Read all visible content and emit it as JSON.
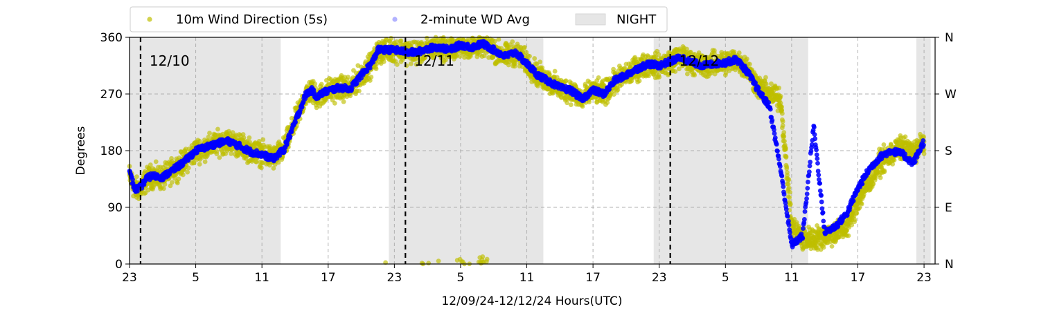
{
  "chart_data": {
    "type": "scatter",
    "xlabel": "12/09/24-12/12/24  Hours(UTC)",
    "ylabel": "Degrees",
    "x_unit": "hours",
    "xlim": [
      0,
      73
    ],
    "ylim": [
      0,
      360
    ],
    "x_ticks": [
      {
        "x": 0,
        "label": "23"
      },
      {
        "x": 6,
        "label": "5"
      },
      {
        "x": 12,
        "label": "11"
      },
      {
        "x": 18,
        "label": "17"
      },
      {
        "x": 24,
        "label": "23"
      },
      {
        "x": 30,
        "label": "5"
      },
      {
        "x": 36,
        "label": "11"
      },
      {
        "x": 42,
        "label": "17"
      },
      {
        "x": 48,
        "label": "23"
      },
      {
        "x": 54,
        "label": "5"
      },
      {
        "x": 60,
        "label": "11"
      },
      {
        "x": 66,
        "label": "17"
      },
      {
        "x": 72,
        "label": "23"
      }
    ],
    "y_ticks": [
      0,
      90,
      180,
      270,
      360
    ],
    "y_ticks_right": [
      {
        "y": 0,
        "label": "N"
      },
      {
        "y": 90,
        "label": "E"
      },
      {
        "y": 180,
        "label": "S"
      },
      {
        "y": 270,
        "label": "W"
      },
      {
        "y": 360,
        "label": "N"
      }
    ],
    "grid": true,
    "legend": {
      "placement": "top",
      "entries": [
        "10m Wind Direction (5s)",
        "2-minute WD Avg",
        "NIGHT"
      ]
    },
    "night_spans": [
      [
        0,
        13.7
      ],
      [
        23.5,
        37.5
      ],
      [
        47.5,
        61.5
      ],
      [
        71.3,
        72.6
      ]
    ],
    "date_lines": [
      {
        "x": 1,
        "label": "12/10"
      },
      {
        "x": 25,
        "label": "12/11"
      },
      {
        "x": 49,
        "label": "12/12"
      }
    ],
    "series": [
      {
        "name": "10m Wind Direction (5s)",
        "color": "#bfbf00",
        "marker": "circle",
        "spread_deg": 18,
        "x": [
          0,
          0.5,
          1,
          1.5,
          2,
          3,
          4,
          5,
          6,
          7,
          8,
          9,
          10,
          11,
          12,
          13,
          14,
          15,
          16,
          16.5,
          17,
          17.5,
          18,
          19,
          20,
          21,
          22,
          22.5,
          23,
          24,
          25,
          26,
          27,
          28,
          29,
          30,
          31,
          32,
          33,
          34,
          35,
          36,
          37,
          38,
          39,
          40,
          41,
          42,
          43,
          44,
          45,
          46,
          47,
          48,
          49,
          50,
          51,
          52,
          53,
          54,
          55,
          56,
          57,
          58,
          59,
          60,
          61,
          62,
          63,
          64,
          65,
          66,
          67,
          68,
          69,
          70,
          71,
          72
        ],
        "values": [
          140,
          118,
          120,
          133,
          140,
          136,
          150,
          162,
          180,
          185,
          192,
          195,
          188,
          180,
          175,
          168,
          182,
          225,
          270,
          275,
          265,
          270,
          275,
          280,
          278,
          300,
          318,
          335,
          340,
          340,
          338,
          336,
          342,
          345,
          340,
          348,
          344,
          350,
          340,
          330,
          335,
          320,
          300,
          290,
          278,
          275,
          262,
          275,
          270,
          290,
          300,
          310,
          318,
          315,
          322,
          328,
          320,
          315,
          318,
          320,
          325,
          310,
          280,
          270,
          262,
          60,
          40,
          40,
          45,
          50,
          60,
          100,
          130,
          160,
          175,
          185,
          175,
          195
        ]
      },
      {
        "name": "2-minute WD Avg",
        "color": "#0000ff",
        "marker": "circle",
        "x": [
          0,
          0.5,
          1,
          1.5,
          2,
          3,
          4,
          5,
          6,
          7,
          8,
          9,
          10,
          11,
          12,
          13,
          14,
          15,
          16,
          16.5,
          17,
          17.5,
          18,
          19,
          20,
          21,
          22,
          22.5,
          23,
          24,
          25,
          26,
          27,
          28,
          29,
          30,
          31,
          32,
          33,
          34,
          35,
          36,
          37,
          38,
          39,
          40,
          41,
          42,
          43,
          44,
          45,
          46,
          47,
          48,
          49,
          50,
          51,
          52,
          53,
          54,
          55,
          56,
          57,
          58,
          59,
          60,
          61,
          62,
          63,
          64,
          65,
          66,
          67,
          68,
          69,
          70,
          71,
          72
        ],
        "values": [
          145,
          118,
          122,
          135,
          140,
          138,
          150,
          163,
          180,
          186,
          192,
          195,
          187,
          178,
          174,
          167,
          182,
          225,
          270,
          276,
          265,
          272,
          275,
          280,
          278,
          300,
          320,
          340,
          340,
          340,
          337,
          336,
          342,
          345,
          340,
          348,
          344,
          350,
          340,
          330,
          336,
          318,
          300,
          290,
          280,
          276,
          262,
          276,
          270,
          292,
          300,
          310,
          318,
          315,
          322,
          328,
          320,
          315,
          318,
          320,
          325,
          305,
          275,
          250,
          150,
          30,
          45,
          220,
          50,
          60,
          80,
          120,
          150,
          170,
          180,
          175,
          160,
          195
        ]
      }
    ]
  }
}
